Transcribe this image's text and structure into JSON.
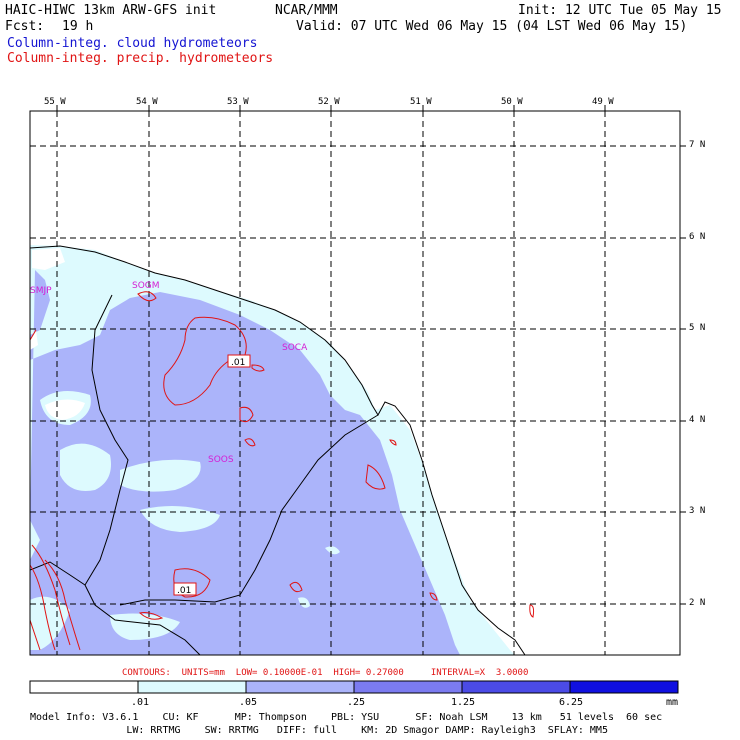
{
  "header": {
    "title_left": "HAIC-HIWC 13km ARW-GFS init",
    "org": "NCAR/MMM",
    "init": "Init: 12 UTC Tue 05 May 15",
    "fcst_label": "Fcst:",
    "fcst_value": "19 h",
    "valid": "Valid: 07 UTC Wed 06 May 15 (04 LST Wed 06 May 15)",
    "field_cloud": "Column-integ. cloud hydrometeors",
    "field_precip": "Column-integ. precip. hydrometeors"
  },
  "map": {
    "lon_labels": [
      "55 W",
      "54 W",
      "53 W",
      "52 W",
      "51 W",
      "50 W",
      "49 W"
    ],
    "lat_labels": [
      "7 N",
      "6 N",
      "5 N",
      "4 N",
      "3 N",
      "2 N"
    ],
    "station_labels": [
      "SMJP",
      "SOGM",
      "SOCA",
      "SOOS"
    ],
    "contour_labels": [
      ".01",
      ".01"
    ],
    "colors": {
      "light": "#ddfafe",
      "medium": "#abb4fa",
      "contour": "#e01414",
      "station": "#d420d4",
      "coast": "#000000"
    }
  },
  "contours_line": {
    "text": "CONTOURS:  UNITS=mm  LOW= 0.10000E-01  HIGH= 0.27000     INTERVAL=X  3.0000"
  },
  "colorbar": {
    "labels": [
      ".01",
      ".05",
      ".25",
      "1.25",
      "6.25",
      "mm"
    ],
    "colors": [
      "#ffffff",
      "#ddfafe",
      "#abb4fa",
      "#7b7bf0",
      "#4b4be6",
      "#1010e0"
    ]
  },
  "footer": {
    "line1": "Model Info: V3.6.1    CU: KF      MP: Thompson    PBL: YSU      SF: Noah LSM    13 km   51 levels  60 sec",
    "line2": "                LW: RRTMG    SW: RRTMG   DIFF: full    KM: 2D Smagor DAMP: Rayleigh3  SFLAY: MM5"
  }
}
